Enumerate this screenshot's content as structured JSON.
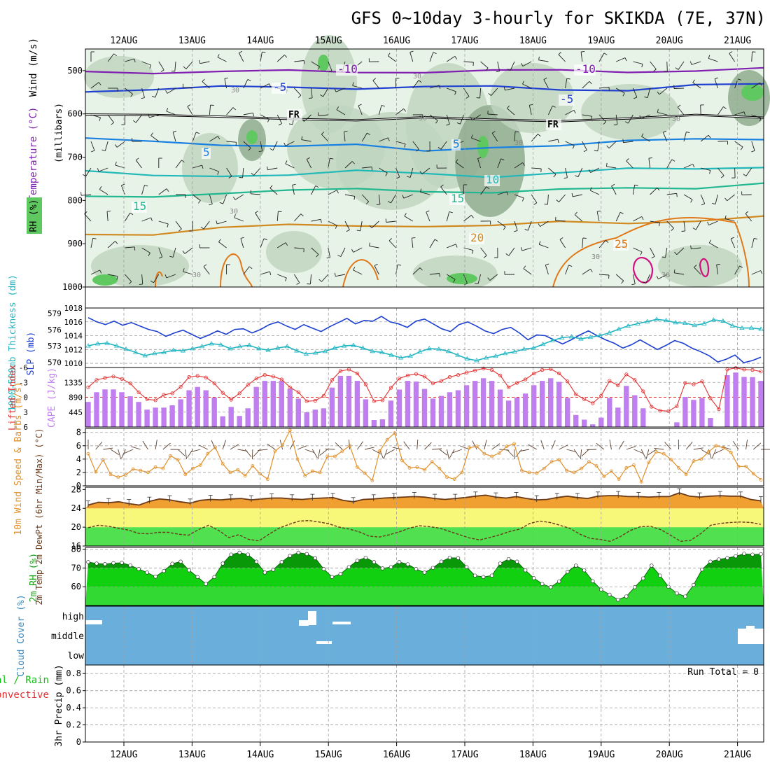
{
  "title": "GFS 0~10day 3-hourly for SKIKDA (7E, 37N)",
  "colors": {
    "background": "#ffffff",
    "frame": "#000000",
    "grid": "#a0a0a0",
    "slp_line": "#1c3fd0",
    "thickness_line": "#22b5c2",
    "lifted_index_line": "#e03030",
    "cape_bar": "#c07ef0",
    "wind_speed_line": "#e0902a",
    "wind_barb": "#5a4030",
    "temp_fill": "#f0a030",
    "temp_line": "#6b3a1a",
    "dewpoint_line": "#6b3a1a",
    "band_yellow": "#f7f77a",
    "band_green": "#50e050",
    "rh_fill": "#10d010",
    "rh_dark_fill": "#089808",
    "cloud_bg": "#6aaedb",
    "cloud_patch": "#ffffff",
    "rh_shade_light": "#e8f3e8",
    "rh_shade_mid": "#c0d5c0",
    "rh_shade_dark": "#8fab8f",
    "rh_shade_green": "#60c860",
    "contour_20": "#d08a20",
    "contour_25": "#e07818",
    "contour_30": "#d01080",
    "contour_15": "#20b890",
    "contour_10": "#20b8b8",
    "contour_5": "#1880e0",
    "contour_m5": "#2040d0",
    "contour_m10": "#8020b0",
    "contour_fr": "#000000"
  },
  "chart_data": [
    {
      "type": "heatmap",
      "name": "upper-air cross-section",
      "xticks": [
        "12AUG",
        "13AUG",
        "14AUG",
        "15AUG",
        "16AUG",
        "17AUG",
        "18AUG",
        "19AUG",
        "20AUG",
        "21AUG"
      ],
      "ylabel": "(millibars)",
      "legend_labels": [
        "Wind (m/s)",
        "Temperature (°C)",
        "RH (%)"
      ],
      "ylim": [
        1000,
        450
      ],
      "yticks": [
        "500",
        "600",
        "700",
        "800",
        "900",
        "1000"
      ],
      "isotherm_labels": [
        "-10",
        "-10",
        "-5",
        "-5",
        "FR",
        "FR",
        "5",
        "5",
        "10",
        "15",
        "15",
        "20",
        "25"
      ],
      "rh_contour_labels": [
        "30",
        "30",
        "30",
        "30",
        "30",
        "30",
        "30",
        "30",
        "30"
      ],
      "isotherms": [
        {
          "label": "-10",
          "y": [
            502,
            502,
            503,
            503,
            502,
            501,
            502,
            501,
            500,
            499,
            498
          ]
        },
        {
          "label": "-5",
          "y": [
            545,
            542,
            540,
            539,
            538,
            537,
            540,
            543,
            542,
            535,
            534
          ]
        },
        {
          "label": "FR",
          "y": [
            597,
            605,
            610,
            608,
            612,
            612,
            615,
            612,
            610,
            607,
            608
          ]
        },
        {
          "label": "5",
          "y": [
            655,
            668,
            672,
            670,
            672,
            690,
            675,
            670,
            665,
            660,
            655
          ]
        },
        {
          "label": "10",
          "y": [
            735,
            745,
            740,
            740,
            735,
            738,
            742,
            737,
            730,
            725,
            720
          ]
        },
        {
          "label": "15",
          "y": [
            795,
            790,
            780,
            779,
            776,
            776,
            780,
            778,
            772,
            768,
            760
          ]
        },
        {
          "label": "20",
          "y": [
            880,
            875,
            862,
            860,
            858,
            856,
            860,
            852,
            850,
            845,
            840
          ]
        }
      ]
    },
    {
      "type": "line",
      "name": "SLP and 1000-500mb thickness",
      "ylabel_left": "1000-500mb Thickness (dm)",
      "ylabel_right": "SLP (mb)",
      "yticks_left": [
        "579",
        "576",
        "573",
        "570"
      ],
      "yticks_right": [
        "1018",
        "1016",
        "1014",
        "1012",
        "1010"
      ],
      "ylim_left": [
        569,
        580
      ],
      "ylim_right": [
        1009.4,
        1018
      ],
      "series": [
        {
          "name": "SLP (mb)",
          "axis": "right",
          "values": [
            1016.6,
            1016.0,
            1015.6,
            1016.1,
            1015.5,
            1015.9,
            1015.4,
            1014.9,
            1014.6,
            1013.9,
            1014.4,
            1014.8,
            1014.2,
            1013.6,
            1014.1,
            1014.7,
            1014.2,
            1014.9,
            1015.0,
            1014.4,
            1014.9,
            1015.6,
            1016.0,
            1015.4,
            1014.9,
            1015.6,
            1015.1,
            1014.6,
            1015.3,
            1015.9,
            1016.5,
            1015.7,
            1016.2,
            1016.1,
            1016.8,
            1016.0,
            1015.7,
            1015.2,
            1016.1,
            1016.4,
            1015.7,
            1015.0,
            1014.6,
            1015.6,
            1016.0,
            1015.4,
            1014.7,
            1014.3,
            1014.9,
            1015.2,
            1014.4,
            1013.4,
            1014.1,
            1014.0,
            1013.4,
            1012.8,
            1013.4,
            1014.1,
            1014.7,
            1014.0,
            1013.4,
            1012.9,
            1012.2,
            1012.7,
            1013.4,
            1012.7,
            1012.0,
            1012.6,
            1013.3,
            1012.9,
            1012.2,
            1011.7,
            1011.1,
            1010.2,
            1010.6,
            1011.2,
            1010.1,
            1010.4,
            1010.9
          ]
        },
        {
          "name": "1000-500mb Thickness (dm)",
          "axis": "left",
          "values": [
            573.0,
            573.4,
            573.5,
            573.0,
            572.4,
            571.8,
            571.2,
            571.6,
            571.8,
            572.2,
            572.1,
            572.5,
            572.9,
            573.4,
            573.2,
            572.5,
            572.9,
            573.1,
            572.5,
            572.2,
            572.6,
            572.9,
            572.1,
            571.5,
            571.7,
            572.0,
            572.6,
            573.0,
            573.1,
            572.6,
            572.0,
            571.8,
            571.3,
            570.8,
            571.1,
            571.9,
            572.5,
            572.4,
            572.0,
            571.3,
            570.6,
            570.3,
            570.8,
            571.1,
            571.6,
            571.9,
            572.4,
            572.6,
            573.3,
            574.0,
            574.5,
            574.7,
            574.3,
            574.6,
            574.9,
            575.4,
            576.1,
            576.7,
            577.1,
            577.5,
            577.9,
            577.7,
            577.3,
            577.2,
            576.8,
            577.1,
            577.8,
            577.6,
            576.7,
            576.3,
            576.3,
            576.1
          ]
        }
      ]
    },
    {
      "type": "bar",
      "name": "CAPE and Lifted Index",
      "ylabel_left": "Lifted Index",
      "ylabel_right": "CAPE (J/kg)",
      "yticks_left": [
        "-6",
        "-3",
        "0",
        "3",
        "6"
      ],
      "yticks_right": [
        "1335",
        "890",
        "445"
      ],
      "ylim_cape": [
        0,
        1780
      ],
      "ylim_li": [
        6,
        -6
      ],
      "cape": [
        750,
        1040,
        1125,
        1125,
        1040,
        920,
        750,
        520,
        580,
        580,
        650,
        830,
        1100,
        1200,
        1100,
        880,
        320,
        600,
        330,
        560,
        1200,
        1380,
        1380,
        1380,
        1140,
        850,
        440,
        520,
        560,
        1180,
        1530,
        1530,
        1380,
        830,
        210,
        230,
        790,
        1120,
        1380,
        1360,
        1140,
        850,
        930,
        1040,
        1100,
        1250,
        1380,
        1460,
        1380,
        1120,
        790,
        880,
        1000,
        1250,
        1380,
        1460,
        1350,
        870,
        360,
        220,
        80,
        280,
        870,
        580,
        1230,
        950,
        560,
        10,
        0,
        0,
        140,
        900,
        810,
        870,
        270,
        0,
        1550,
        1630,
        1500,
        1490,
        1380
      ],
      "lifted_index": [
        -2.0,
        -3.5,
        -3.9,
        -4.2,
        -3.7,
        -2.8,
        -1.0,
        0.4,
        0.6,
        -0.5,
        -0.8,
        -2.1,
        -4.1,
        -4.3,
        -4.0,
        -2.8,
        -0.9,
        0.5,
        -0.8,
        -2.5,
        -3.8,
        -4.5,
        -4.2,
        -3.6,
        -2.0,
        -1.0,
        0.8,
        0.7,
        -0.3,
        -3.5,
        -5.3,
        -5.6,
        -4.8,
        -2.6,
        0.8,
        0.6,
        -1.9,
        -3.8,
        -4.4,
        -4.7,
        -4.2,
        -2.8,
        -3.3,
        -4.1,
        -4.5,
        -5.0,
        -5.4,
        -5.8,
        -5.5,
        -4.4,
        -2.0,
        -2.9,
        -3.6,
        -4.8,
        -5.5,
        -5.7,
        -4.8,
        -3.2,
        -0.6,
        0.4,
        1.2,
        -0.3,
        -3.3,
        -2.4,
        -4.6,
        -3.5,
        -1.2,
        1.9,
        2.7,
        2.8,
        1.8,
        -2.9,
        -2.6,
        -3.2,
        0.2,
        2.4,
        -5.6,
        -5.9,
        -5.6,
        -5.5,
        -5.2
      ]
    },
    {
      "type": "line",
      "name": "10m Wind Speed and Barbs",
      "ylabel": "10m Wind Speed & Barbs (m/s)",
      "yticks": [
        "8",
        "6",
        "4",
        "2",
        "0"
      ],
      "ylim": [
        0,
        8.6
      ],
      "values": [
        4.8,
        2.1,
        3.9,
        1.7,
        1.3,
        1.6,
        2.5,
        2.3,
        2.0,
        2.8,
        2.6,
        4.5,
        3.9,
        1.7,
        2.6,
        3.1,
        4.8,
        5.8,
        3.3,
        2.0,
        2.4,
        1.5,
        3.0,
        1.8,
        1.0,
        5.2,
        6.1,
        8.3,
        4.0,
        1.5,
        2.2,
        2.0,
        4.4,
        4.4,
        5.2,
        6.0,
        2.8,
        1.9,
        0.8,
        5.2,
        6.9,
        7.9,
        3.8,
        2.7,
        2.8,
        2.4,
        3.6,
        2.6,
        1.3,
        1.0,
        2.0,
        5.7,
        5.9,
        4.8,
        4.4,
        4.9,
        5.9,
        6.3,
        2.3,
        2.0,
        1.9,
        2.6,
        3.6,
        3.9,
        2.3,
        2.0,
        2.6,
        3.6,
        3.0,
        1.4,
        2.2,
        1.0,
        2.7,
        3.1,
        0.6,
        3.5,
        5.1,
        4.8,
        3.9,
        2.7,
        1.7,
        3.7,
        4.0,
        5.1,
        6.0,
        5.7,
        5.0,
        2.9,
        2.9,
        1.8,
        0.9
      ]
    },
    {
      "type": "area",
      "name": "2m Temp and DewPt",
      "ylabel": "2m Temp 2m DewPt (6hr Min/Max) (°C)",
      "yticks": [
        "28",
        "24",
        "20",
        "16"
      ],
      "ylim": [
        16,
        28.5
      ],
      "series": [
        {
          "name": "2m Temp",
          "values": [
            24.7,
            25.3,
            25.2,
            25.4,
            25.0,
            24.7,
            25.5,
            26.0,
            25.8,
            25.4,
            25.1,
            25.7,
            25.9,
            25.8,
            26.0,
            26.1,
            25.8,
            26.0,
            26.2,
            26.2,
            26.0,
            25.9,
            26.1,
            26.2,
            26.3,
            25.7,
            25.4,
            25.9,
            26.0,
            26.2,
            26.3,
            26.4,
            26.5,
            26.4,
            26.1,
            25.9,
            26.1,
            26.3,
            26.6,
            26.8,
            26.4,
            26.2,
            26.5,
            26.1,
            25.8,
            25.9,
            26.3,
            26.6,
            26.3,
            26.1,
            26.6,
            26.7,
            26.7,
            26.5,
            26.5,
            26.4,
            26.5,
            26.5,
            27.3,
            26.6,
            26.4,
            26.6,
            26.7,
            26.6,
            26.6,
            25.9,
            25.6
          ]
        },
        {
          "name": "2m DewPt",
          "values": [
            19.9,
            20.4,
            20.2,
            19.8,
            19.4,
            18.7,
            18.6,
            18.9,
            18.9,
            18.5,
            18.3,
            19.5,
            20.4,
            19.3,
            17.8,
            18.4,
            17.4,
            17.1,
            18.5,
            19.8,
            20.6,
            21.3,
            21.4,
            21.1,
            20.7,
            20.0,
            19.6,
            19.0,
            18.1,
            17.9,
            18.4,
            19.0,
            19.8,
            20.3,
            20.1,
            19.8,
            19.1,
            18.4,
            17.7,
            17.3,
            17.8,
            18.4,
            19.1,
            19.6,
            20.8,
            21.3,
            21.0,
            20.4,
            19.7,
            18.5,
            17.6,
            17.4,
            17.0,
            18.0,
            19.3,
            20.1,
            20.2,
            19.5,
            18.3,
            17.0,
            17.2,
            18.6,
            20.4,
            20.8,
            21.0,
            21.1,
            21.0,
            20.6
          ]
        }
      ]
    },
    {
      "type": "area",
      "name": "2m RH",
      "ylabel": "2m RH (%)",
      "yticks": [
        "80",
        "70",
        "60"
      ],
      "ylim": [
        50,
        81
      ],
      "values": [
        73.2,
        72.4,
        72.1,
        72.6,
        72.8,
        71.4,
        69.5,
        67.6,
        65.4,
        68.4,
        72.3,
        73.4,
        68.8,
        65.2,
        61.5,
        65.2,
        72.4,
        77.2,
        78.2,
        77.2,
        73.4,
        67.6,
        69.1,
        73.2,
        76.5,
        78.2,
        77.5,
        75.3,
        69.5,
        65.2,
        66.8,
        70.5,
        73.9,
        75.5,
        73.2,
        69.8,
        70.5,
        73.2,
        72.0,
        69.5,
        67.6,
        70.1,
        73.4,
        75.5,
        75.3,
        70.5,
        66.0,
        65.2,
        66.0,
        72.4,
        74.8,
        73.4,
        68.8,
        64.6,
        61.5,
        59.8,
        62.8,
        68.0,
        71.3,
        68.8,
        63.0,
        58.5,
        55.8,
        53.1,
        54.8,
        59.8,
        64.5,
        71.3,
        66.0,
        60.0,
        56.5,
        54.8,
        61.0,
        69.2,
        73.4,
        74.6,
        75.3,
        76.3,
        77.6,
        77.2,
        77.4
      ]
    },
    {
      "type": "bar",
      "name": "Cloud Cover",
      "ylabel": "Cloud Cover (%)",
      "levels": [
        "high",
        "middle",
        "low"
      ]
    },
    {
      "type": "bar",
      "name": "3hr Precip",
      "ylabel_total": "Total / Rain",
      "ylabel_convective": "Convective",
      "ylabel": "3hr Precip (mm)",
      "run_total_label": "Run Total = 0",
      "yticks": [
        "0.8",
        "0.6",
        "0.4",
        "0.2",
        "0"
      ],
      "ylim": [
        0,
        0.9
      ],
      "values": []
    }
  ]
}
